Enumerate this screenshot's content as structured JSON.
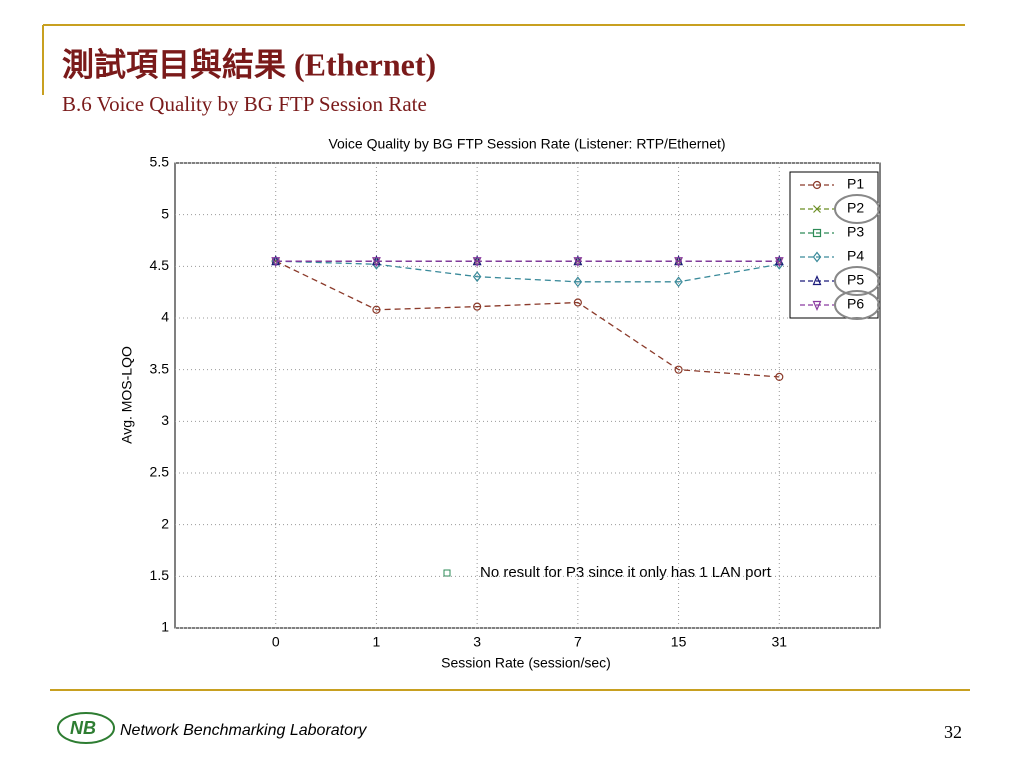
{
  "slide_title": "測試項目與結果 (Ethernet)",
  "slide_subtitle": "B.6 Voice Quality by BG FTP Session Rate",
  "footer": {
    "organization": "Network Benchmarking Laboratory",
    "page_number": "32"
  },
  "chart_data": {
    "type": "line",
    "title": "Voice Quality by BG FTP Session Rate (Listener: RTP/Ethernet)",
    "xlabel": "Session Rate (session/sec)",
    "ylabel": "Avg. MOS-LQO",
    "categories": [
      "0",
      "1",
      "3",
      "7",
      "15",
      "31"
    ],
    "ylim": [
      1,
      5.5
    ],
    "yticks": [
      1,
      1.5,
      2,
      2.5,
      3,
      3.5,
      4,
      4.5,
      5,
      5.5
    ],
    "grid": true,
    "legend": "top-right",
    "annotation": "No result for P3 since it only has 1 LAN port",
    "series": [
      {
        "name": "P1",
        "color": "#8b3a2a",
        "marker": "circle",
        "values": [
          4.55,
          4.08,
          4.11,
          4.15,
          3.5,
          3.43
        ]
      },
      {
        "name": "P2",
        "color": "#6b8e23",
        "marker": "x",
        "values": [
          4.55,
          4.55,
          4.55,
          4.55,
          4.55,
          4.55
        ]
      },
      {
        "name": "P3",
        "color": "#2e8b57",
        "marker": "square",
        "values": [
          null,
          null,
          null,
          null,
          null,
          null
        ]
      },
      {
        "name": "P4",
        "color": "#3a8a9a",
        "marker": "diamond",
        "values": [
          4.55,
          4.52,
          4.4,
          4.35,
          4.35,
          4.52
        ]
      },
      {
        "name": "P5",
        "color": "#1a1a7a",
        "marker": "triangle-up",
        "values": [
          4.55,
          4.55,
          4.55,
          4.55,
          4.55,
          4.55
        ]
      },
      {
        "name": "P6",
        "color": "#8a3aa0",
        "marker": "triangle-down",
        "values": [
          4.55,
          4.55,
          4.55,
          4.55,
          4.55,
          4.55
        ]
      }
    ]
  }
}
